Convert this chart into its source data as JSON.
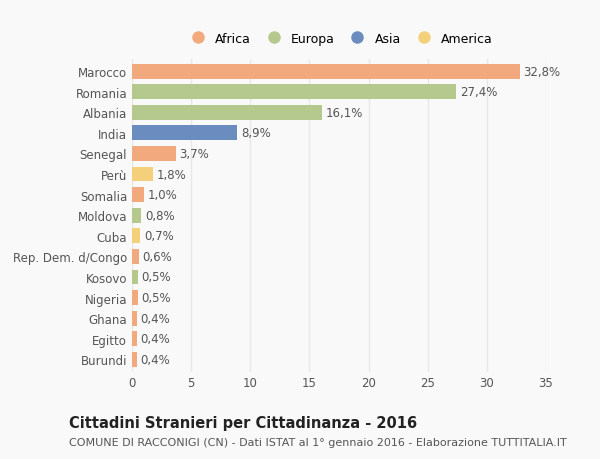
{
  "categories": [
    "Marocco",
    "Romania",
    "Albania",
    "India",
    "Senegal",
    "Perù",
    "Somalia",
    "Moldova",
    "Cuba",
    "Rep. Dem. d/Congo",
    "Kosovo",
    "Nigeria",
    "Ghana",
    "Egitto",
    "Burundi"
  ],
  "values": [
    32.8,
    27.4,
    16.1,
    8.9,
    3.7,
    1.8,
    1.0,
    0.8,
    0.7,
    0.6,
    0.5,
    0.5,
    0.4,
    0.4,
    0.4
  ],
  "labels": [
    "32,8%",
    "27,4%",
    "16,1%",
    "8,9%",
    "3,7%",
    "1,8%",
    "1,0%",
    "0,8%",
    "0,7%",
    "0,6%",
    "0,5%",
    "0,5%",
    "0,4%",
    "0,4%",
    "0,4%"
  ],
  "continents": [
    "Africa",
    "Europa",
    "Europa",
    "Asia",
    "Africa",
    "America",
    "Africa",
    "Europa",
    "America",
    "Africa",
    "Europa",
    "Africa",
    "Africa",
    "Africa",
    "Africa"
  ],
  "continent_colors": {
    "Africa": "#F2A97E",
    "Europa": "#B5C98E",
    "Asia": "#6B8CBE",
    "America": "#F5D07A"
  },
  "legend_order": [
    "Africa",
    "Europa",
    "Asia",
    "America"
  ],
  "xlim": [
    0,
    35
  ],
  "xticks": [
    0,
    5,
    10,
    15,
    20,
    25,
    30,
    35
  ],
  "title": "Cittadini Stranieri per Cittadinanza - 2016",
  "subtitle": "COMUNE DI RACCONIGI (CN) - Dati ISTAT al 1° gennaio 2016 - Elaborazione TUTTITALIA.IT",
  "background_color": "#f9f9f9",
  "grid_color": "#e8e8e8",
  "bar_height": 0.72,
  "label_fontsize": 8.5,
  "tick_fontsize": 8.5,
  "title_fontsize": 10.5,
  "subtitle_fontsize": 8.0
}
